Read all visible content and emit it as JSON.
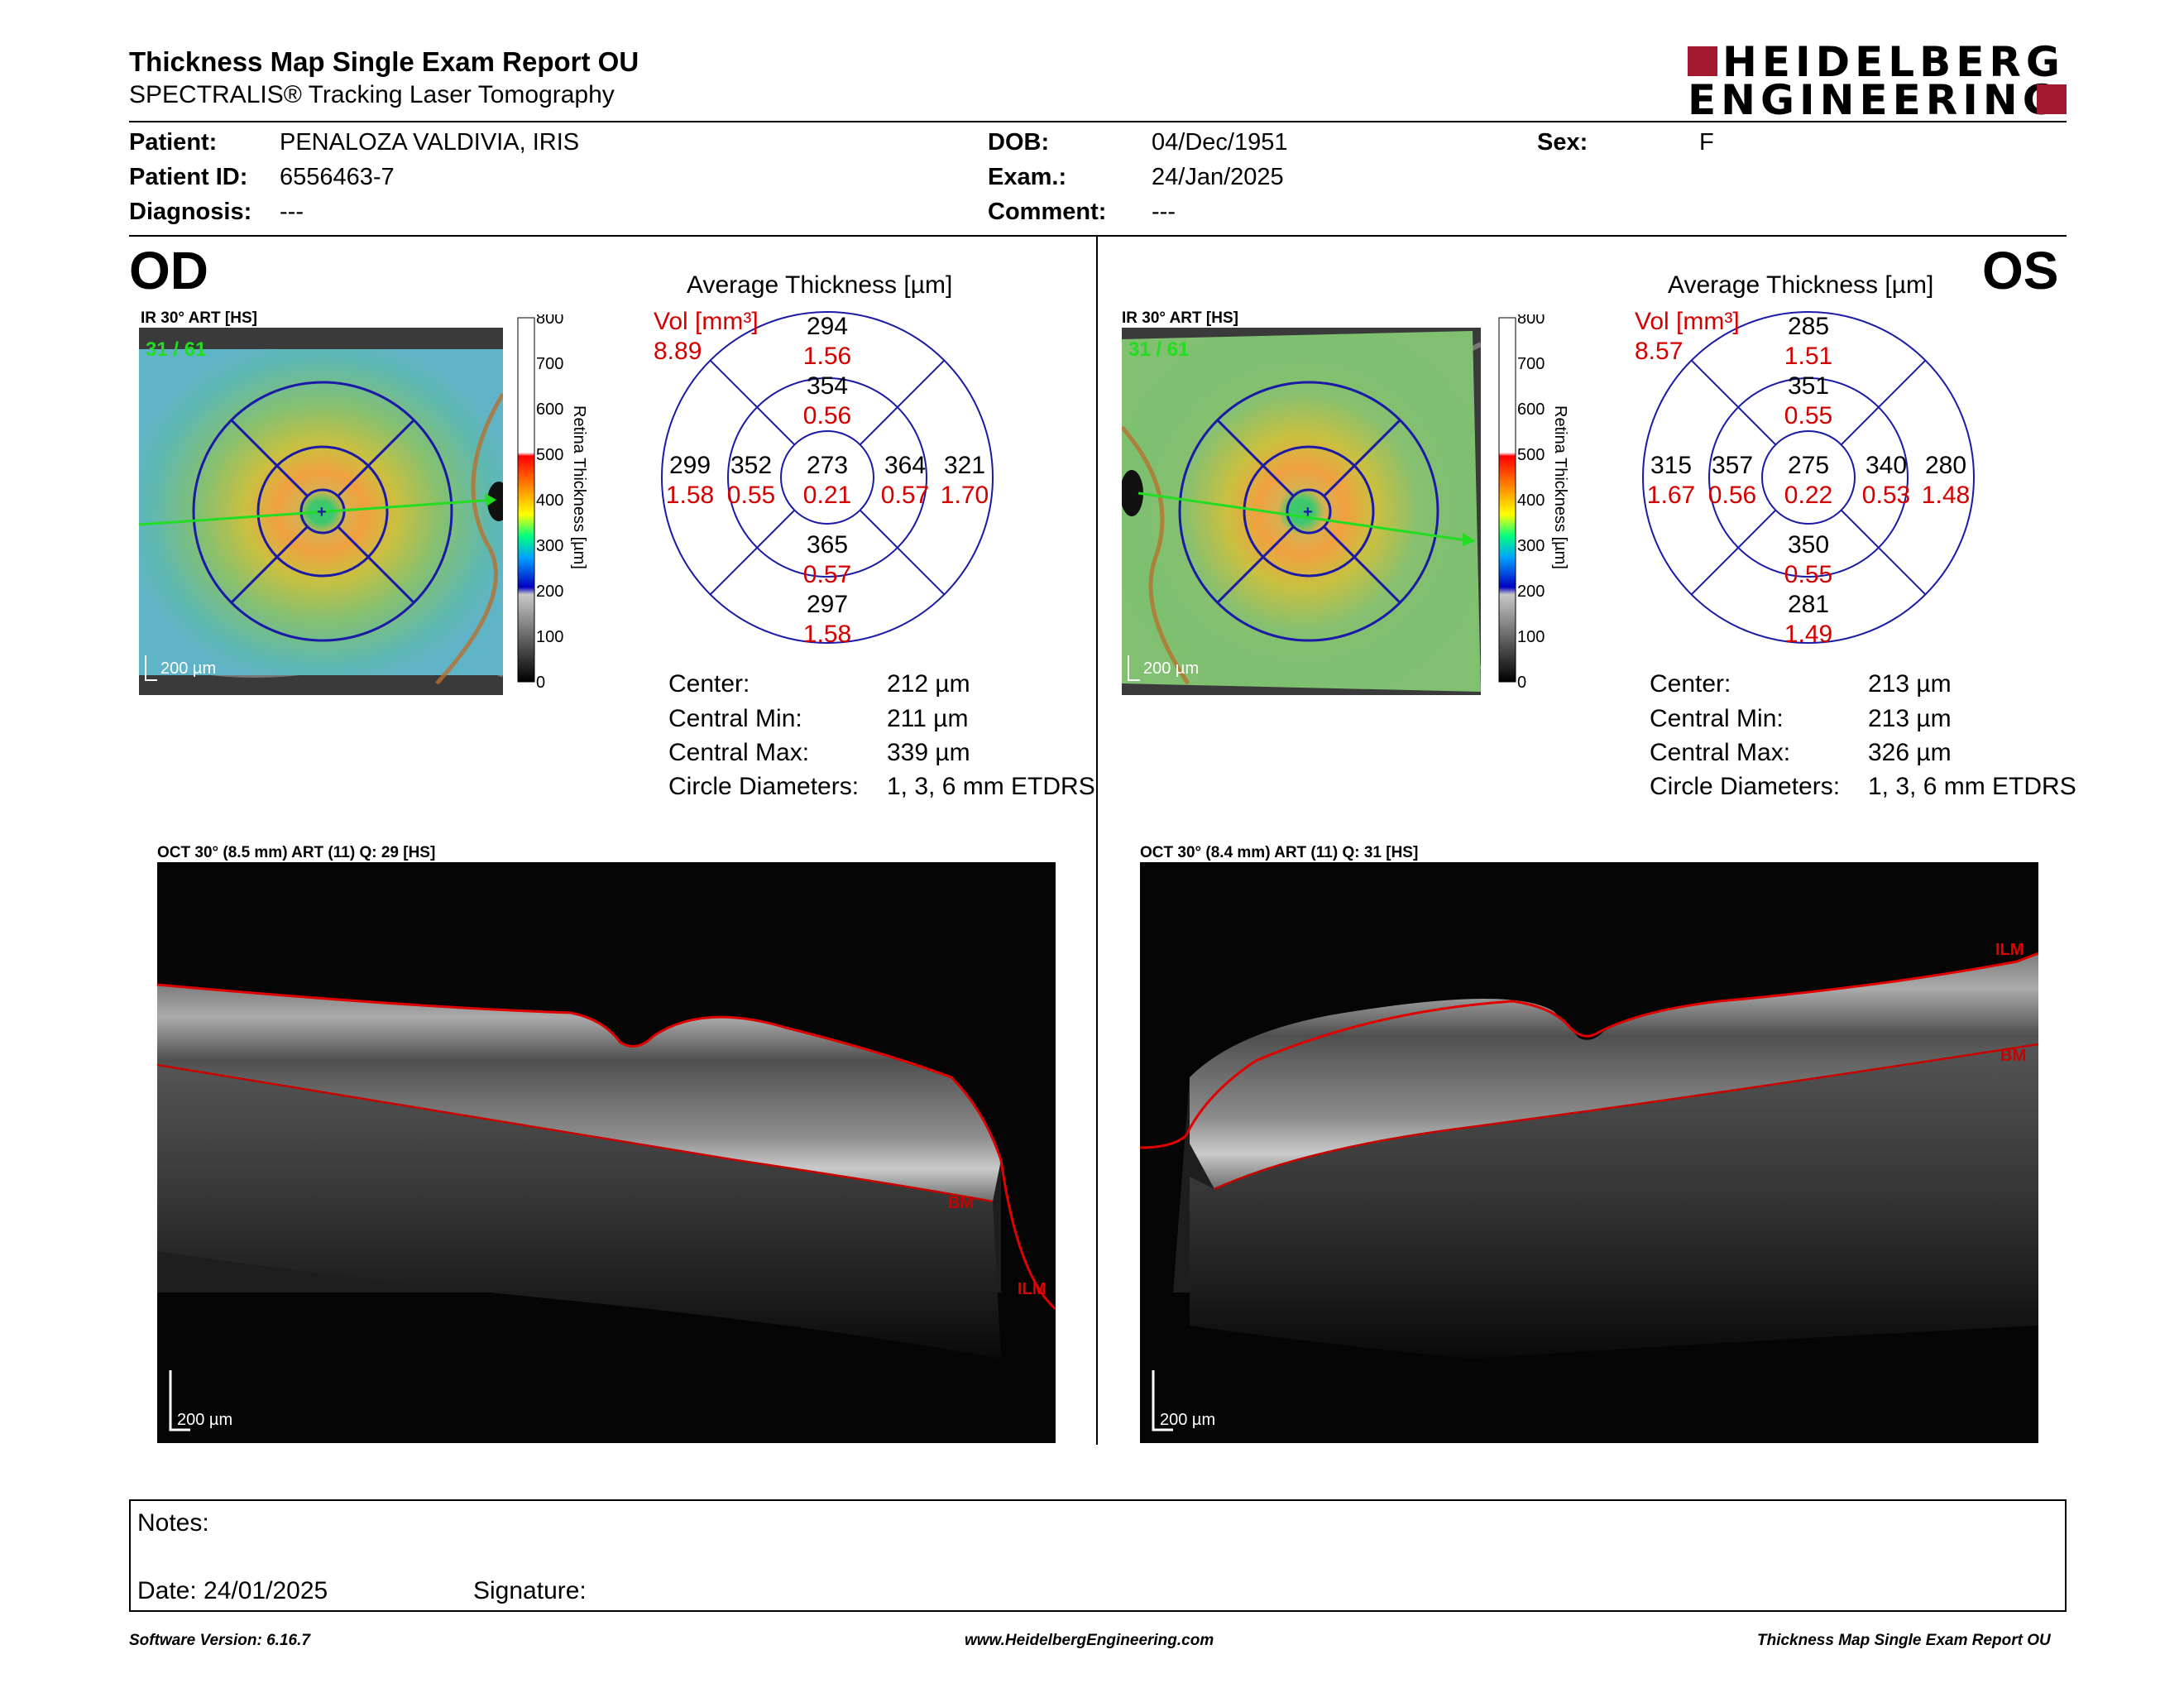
{
  "header": {
    "title": "Thickness Map Single Exam Report OU",
    "subtitle": "SPECTRALIS® Tracking Laser Tomography",
    "logo_line1": "HEIDELBERG",
    "logo_line2": "ENGINEERING",
    "logo_color": "#a31a2e"
  },
  "patient": {
    "patient_label": "Patient:",
    "patient_value": "PENALOZA VALDIVIA, IRIS",
    "id_label": "Patient ID:",
    "id_value": "6556463-7",
    "diagnosis_label": "Diagnosis:",
    "diagnosis_value": "---",
    "dob_label": "DOB:",
    "dob_value": "04/Dec/1951",
    "exam_label": "Exam.:",
    "exam_value": "24/Jan/2025",
    "comment_label": "Comment:",
    "comment_value": "---",
    "sex_label": "Sex:",
    "sex_value": "F"
  },
  "scale": {
    "ticks": [
      "800",
      "700",
      "600",
      "500",
      "400",
      "300",
      "200",
      "100",
      "0"
    ],
    "label": "Retina  Thickness [µm]"
  },
  "od": {
    "eye": "OD",
    "fundus_title": "IR 30° ART [HS]",
    "frame": "31 / 61",
    "scale_bar": "200 µm",
    "avg_title": "Average Thickness [µm]",
    "vol_label": "Vol [mm³]",
    "vol_value": "8.89",
    "grid": {
      "center": [
        "273",
        "0.21"
      ],
      "inner_top": [
        "354",
        "0.56"
      ],
      "inner_bottom": [
        "365",
        "0.57"
      ],
      "inner_left": [
        "352",
        "0.55"
      ],
      "inner_right": [
        "364",
        "0.57"
      ],
      "outer_top": [
        "294",
        "1.56"
      ],
      "outer_bottom": [
        "297",
        "1.58"
      ],
      "outer_left": [
        "299",
        "1.58"
      ],
      "outer_right": [
        "321",
        "1.70"
      ]
    },
    "stats": {
      "center_label": "Center:",
      "center_value": "212 µm",
      "min_label": "Central Min:",
      "min_value": "211 µm",
      "max_label": "Central Max:",
      "max_value": "339 µm",
      "diam_label": "Circle Diameters:",
      "diam_value": "1, 3, 6 mm ETDRS"
    },
    "oct_title": "OCT 30° (8.5 mm) ART (11) Q: 29 [HS]",
    "oct_scale": "200 µm",
    "ilm": "ILM",
    "bm": "BM"
  },
  "os": {
    "eye": "OS",
    "fundus_title": "IR 30° ART [HS]",
    "frame": "31 / 61",
    "scale_bar": "200 µm",
    "avg_title": "Average Thickness [µm]",
    "vol_label": "Vol [mm³]",
    "vol_value": "8.57",
    "grid": {
      "center": [
        "275",
        "0.22"
      ],
      "inner_top": [
        "351",
        "0.55"
      ],
      "inner_bottom": [
        "350",
        "0.55"
      ],
      "inner_left": [
        "357",
        "0.56"
      ],
      "inner_right": [
        "340",
        "0.53"
      ],
      "outer_top": [
        "285",
        "1.51"
      ],
      "outer_bottom": [
        "281",
        "1.49"
      ],
      "outer_left": [
        "315",
        "1.67"
      ],
      "outer_right": [
        "280",
        "1.48"
      ]
    },
    "stats": {
      "center_label": "Center:",
      "center_value": "213 µm",
      "min_label": "Central Min:",
      "min_value": "213 µm",
      "max_label": "Central Max:",
      "max_value": "326 µm",
      "diam_label": "Circle Diameters:",
      "diam_value": "1, 3, 6 mm ETDRS"
    },
    "oct_title": "OCT 30° (8.4 mm) ART (11) Q: 31 [HS]",
    "oct_scale": "200 µm",
    "ilm": "ILM",
    "bm": "BM"
  },
  "notes": {
    "notes_label": "Notes:",
    "date_label": "Date: 24/01/2025",
    "signature_label": "Signature:"
  },
  "footer": {
    "left": "Software Version: 6.16.7",
    "center": "www.HeidelbergEngineering.com",
    "right": "Thickness Map Single Exam Report OU"
  },
  "colors": {
    "grid_blue": "#1a1aa6",
    "values_red": "#d40000",
    "frame_green": "#22dd22"
  }
}
